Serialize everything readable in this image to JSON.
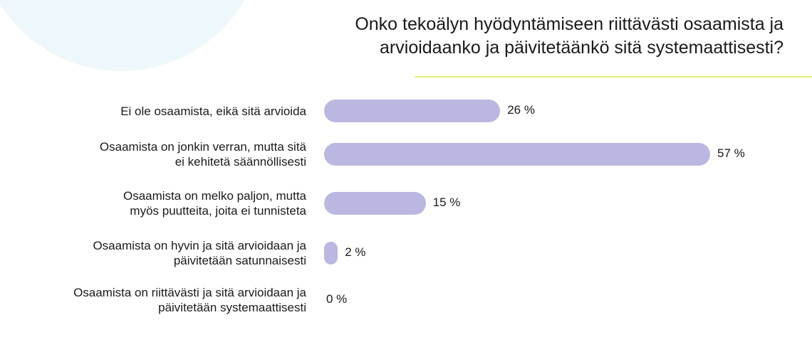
{
  "chart_data": {
    "type": "bar",
    "orientation": "horizontal",
    "title": "Onko tekoälyn hyödyntämiseen riittävästi osaamista ja arvioidaanko ja päivitetäänkö sitä systemaattisesti?",
    "categories": [
      "Ei ole osaamista, eikä sitä arvioida",
      "Osaamista on jonkin verran, mutta sitä\nei kehitetä säännöllisesti",
      "Osaamista on melko paljon, mutta\nmyös puutteita, joita ei tunnisteta",
      "Osaamista on hyvin ja sitä arvioidaan ja\npäivitetään satunnaisesti",
      "Osaamista on riittävästi ja sitä arvioidaan ja\npäivitetään systemaattisesti"
    ],
    "values": [
      26,
      57,
      15,
      2,
      0
    ],
    "value_labels": [
      "26 %",
      "57 %",
      "15 %",
      "2 %",
      "0 %"
    ],
    "unit": "%",
    "bar_color": "#bab8e1",
    "accent_color": "#e6f07a",
    "grid": false,
    "legend": "none"
  }
}
